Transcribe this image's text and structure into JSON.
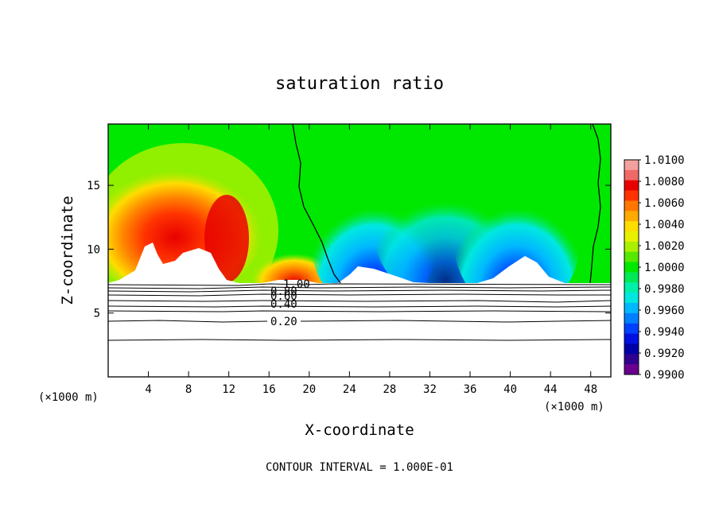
{
  "chart_data": {
    "type": "heatmap",
    "title": "saturation ratio",
    "xlabel": "X-coordinate",
    "ylabel": "Z-coordinate",
    "x_unit_label": "(×1000 m)",
    "x_unit_label_right": "(×1000 m)",
    "footer": "CONTOUR INTERVAL = 1.000E-01",
    "xlim": [
      0,
      50
    ],
    "ylim": [
      0,
      19.8
    ],
    "x_ticks": [
      4,
      8,
      12,
      16,
      20,
      24,
      28,
      32,
      36,
      40,
      44,
      48
    ],
    "x_tick_labels": [
      "4",
      "8",
      "12",
      "16",
      "20",
      "24",
      "28",
      "32",
      "36",
      "40",
      "44",
      "48"
    ],
    "y_ticks": [
      5,
      10,
      15
    ],
    "y_tick_labels": [
      "5",
      "10",
      "15"
    ],
    "grid": false,
    "colorbar": {
      "min": 0.99,
      "max": 1.01,
      "ticks": [
        1.01,
        1.008,
        1.006,
        1.004,
        1.002,
        1.0,
        0.998,
        0.996,
        0.994,
        0.992,
        0.99
      ],
      "labels": [
        "1.0100",
        "1.0080",
        "1.0060",
        "1.0040",
        "1.0020",
        "1.0000",
        "0.9980",
        "0.9960",
        "0.9940",
        "0.9920",
        "0.9900"
      ],
      "colors": [
        "#f4a0a0",
        "#f06868",
        "#e80000",
        "#ff3300",
        "#ff7700",
        "#ffaa00",
        "#ffdd00",
        "#e8f000",
        "#aaf000",
        "#55e800",
        "#00e800",
        "#00e855",
        "#00f0aa",
        "#00e8e0",
        "#00b8ff",
        "#0080ff",
        "#0040ff",
        "#0010e0",
        "#0000a8",
        "#300090",
        "#6a0090"
      ]
    },
    "contour_lines": [
      {
        "value": 1.0,
        "label": "1.00"
      },
      {
        "value": 0.8,
        "label": "0.80"
      },
      {
        "value": 0.6,
        "label": "0.60"
      },
      {
        "value": 0.4,
        "label": "0.40"
      },
      {
        "value": 0.2,
        "label": "0.20"
      }
    ],
    "field_features": [
      {
        "region": "left supersaturated plume",
        "x_range": [
          1,
          13
        ],
        "z_range": [
          7.5,
          16
        ],
        "peak": 1.01
      },
      {
        "region": "secondary supersaturated plume",
        "x_range": [
          15,
          21
        ],
        "z_range": [
          7.5,
          10
        ],
        "peak": 1.008
      },
      {
        "region": "subsaturated basin",
        "x_range": [
          23,
          47
        ],
        "z_range": [
          7.5,
          16
        ],
        "min": 0.99
      },
      {
        "region": "saturation 1.00 isoline",
        "x_values": [
          18.5,
          23.5,
          48.5
        ]
      }
    ]
  }
}
